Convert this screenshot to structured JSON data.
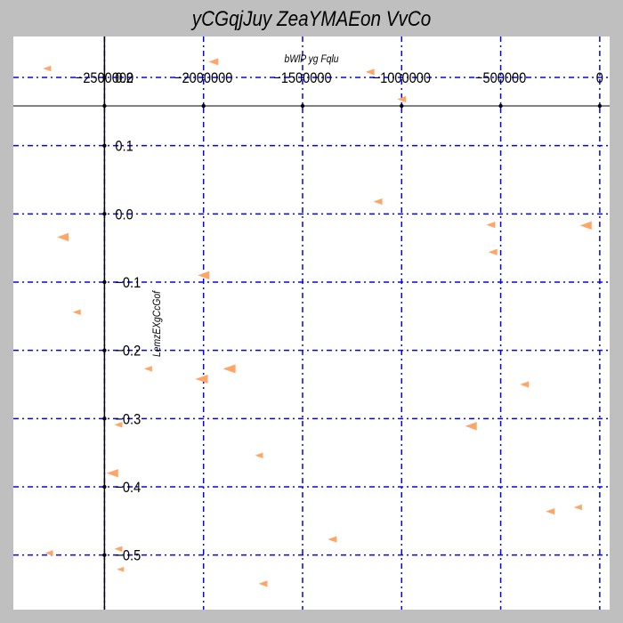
{
  "chart_data": {
    "type": "scatter",
    "title": "yCGqjJuy ZeaYMAEon VvCo",
    "xlabel": "bWlP yg Fqlu",
    "ylabel": "LemzEXgCcGof",
    "xlim": [
      -2960000,
      50000
    ],
    "ylim": [
      -0.58,
      0.26
    ],
    "x_ticks": [
      -2500000,
      -2000000,
      -1500000,
      -1000000,
      -500000,
      0
    ],
    "x_tick_labels": [
      "−2500000",
      "−2000000",
      "−1500000",
      "−1000000",
      "−500000",
      "0"
    ],
    "y_ticks": [
      0.2,
      0.1,
      0.0,
      -0.1,
      -0.2,
      -0.3,
      -0.4,
      -0.5
    ],
    "y_tick_labels": [
      "0.2",
      "0.1",
      "0.0",
      "−0.1",
      "−0.2",
      "−0.3",
      "−0.4",
      "−0.5"
    ],
    "grid": true,
    "marker": "triangle-left",
    "colors": {
      "background": "#bfbfbf",
      "plot_area": "#ffffff",
      "grid": "#0000ff",
      "axis": "#000000",
      "marker": "#ffa566"
    },
    "series": [
      {
        "points": [
          {
            "x": -2790000,
            "y": 0.213,
            "size": 9
          },
          {
            "x": -1950000,
            "y": 0.223,
            "size": 11
          },
          {
            "x": -1160000,
            "y": 0.208,
            "size": 10
          },
          {
            "x": -1000000,
            "y": 0.168,
            "size": 10
          },
          {
            "x": -1120000,
            "y": 0.018,
            "size": 10
          },
          {
            "x": -550000,
            "y": -0.016,
            "size": 10
          },
          {
            "x": -70000,
            "y": -0.017,
            "size": 13
          },
          {
            "x": -2710000,
            "y": -0.034,
            "size": 13
          },
          {
            "x": -540000,
            "y": -0.056,
            "size": 10
          },
          {
            "x": -2000000,
            "y": -0.09,
            "size": 13
          },
          {
            "x": -2640000,
            "y": -0.144,
            "size": 9
          },
          {
            "x": -2280000,
            "y": -0.227,
            "size": 9
          },
          {
            "x": -1870000,
            "y": -0.227,
            "size": 14
          },
          {
            "x": -2010000,
            "y": -0.242,
            "size": 14
          },
          {
            "x": -380000,
            "y": -0.25,
            "size": 10
          },
          {
            "x": -650000,
            "y": -0.311,
            "size": 13
          },
          {
            "x": -2430000,
            "y": -0.309,
            "size": 9
          },
          {
            "x": -1720000,
            "y": -0.354,
            "size": 9
          },
          {
            "x": -2460000,
            "y": -0.38,
            "size": 13
          },
          {
            "x": -250000,
            "y": -0.436,
            "size": 10
          },
          {
            "x": -110000,
            "y": -0.43,
            "size": 9
          },
          {
            "x": -1350000,
            "y": -0.477,
            "size": 10
          },
          {
            "x": -2430000,
            "y": -0.491,
            "size": 9
          },
          {
            "x": -2780000,
            "y": -0.497,
            "size": 9
          },
          {
            "x": -2420000,
            "y": -0.521,
            "size": 8
          },
          {
            "x": -1700000,
            "y": -0.542,
            "size": 10
          }
        ]
      }
    ]
  }
}
